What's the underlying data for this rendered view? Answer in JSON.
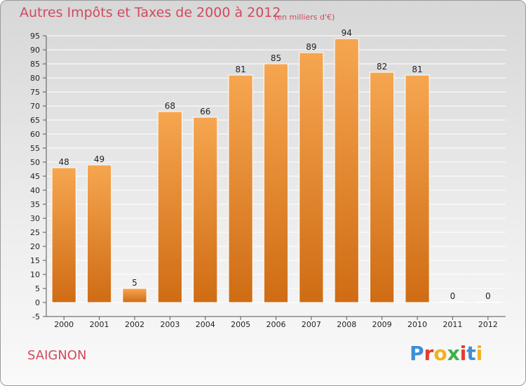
{
  "title": "Autres Impôts et Taxes de 2000 à 2012",
  "subtitle": "(en milliers d'€)",
  "commune": "SAIGNON",
  "brand": {
    "letters": [
      "P",
      "r",
      "o",
      "x",
      "i",
      "t",
      "i"
    ],
    "colors": [
      "#3d8fd6",
      "#e8392f",
      "#f2b21e",
      "#3db04b",
      "#e8392f",
      "#3d8fd6",
      "#f2b21e"
    ]
  },
  "colors": {
    "bar_top": "#f6a650",
    "bar_bottom": "#cf6c14",
    "title": "#d04a5e",
    "grid": "#ffffff"
  },
  "chart_data": {
    "type": "bar",
    "categories": [
      "2000",
      "2001",
      "2002",
      "2003",
      "2004",
      "2005",
      "2006",
      "2007",
      "2008",
      "2009",
      "2010",
      "2011",
      "2012"
    ],
    "values": [
      48,
      49,
      5,
      68,
      66,
      81,
      85,
      89,
      94,
      82,
      81,
      0,
      0
    ],
    "title": "Autres Impôts et Taxes de 2000 à 2012",
    "subtitle": "(en milliers d'€)",
    "xlabel": "",
    "ylabel": "",
    "ylim": [
      -5,
      95
    ],
    "ytick_step": 5,
    "grid": true,
    "legend": "none"
  }
}
